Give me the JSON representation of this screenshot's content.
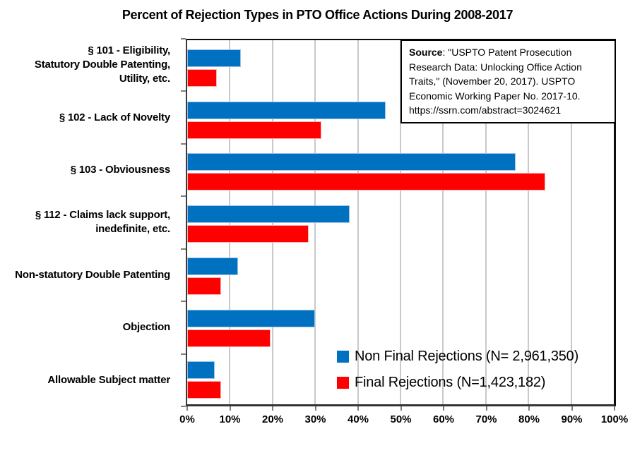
{
  "title": "Percent of Rejection Types in PTO Office Actions During 2008-2017",
  "source_box": {
    "label": "Source",
    "lines": [
      ": \"USPTO Patent Prosecution",
      "Research Data: Unlocking Office Action",
      "Traits,\" (November 20, 2017). USPTO",
      "Economic Working Paper No. 2017-10.",
      "https://ssrn.com/abstract=3024621"
    ]
  },
  "legend": [
    {
      "label": "Non Final Rejections (N= 2,961,350)",
      "color": "#0070C0"
    },
    {
      "label": "Final Rejections (N=1,423,182)",
      "color": "#FF0000"
    }
  ],
  "chart_data": {
    "type": "bar",
    "orientation": "horizontal",
    "title": "Percent of Rejection Types in PTO Office Actions During 2008-2017",
    "categories": [
      [
        "§ 101  - Eligibility,",
        "Statutory Double Patenting,",
        "Utility, etc."
      ],
      [
        "§ 102 - Lack of Novelty"
      ],
      [
        "§ 103 - Obviousness"
      ],
      [
        "§ 112 - Claims lack support,",
        "inedefinite, etc."
      ],
      [
        "Non-statutory Double Patenting"
      ],
      [
        "Objection"
      ],
      [
        "Allowable Subject matter"
      ]
    ],
    "series": [
      {
        "name": "Non Final Rejections (N= 2,961,350)",
        "color": "#0070C0",
        "edge": "#9DC3E6",
        "values": [
          12.5,
          46.5,
          77,
          38,
          12,
          30,
          6.5
        ]
      },
      {
        "name": "Final Rejections (N=1,423,182)",
        "color": "#FF0000",
        "edge": "#FFB3B3",
        "values": [
          7,
          31.5,
          84,
          28.5,
          8,
          19.5,
          8
        ]
      }
    ],
    "x_ticks": [
      "0%",
      "10%",
      "20%",
      "30%",
      "40%",
      "50%",
      "60%",
      "70%",
      "80%",
      "90%",
      "100%"
    ],
    "xlabel": "",
    "ylabel": "",
    "xlim": [
      0,
      100
    ],
    "grid": "vertical gridlines every 10%, light gray",
    "gridline_color": "#c9c9c9",
    "legend_position": "inside bottom-right"
  }
}
